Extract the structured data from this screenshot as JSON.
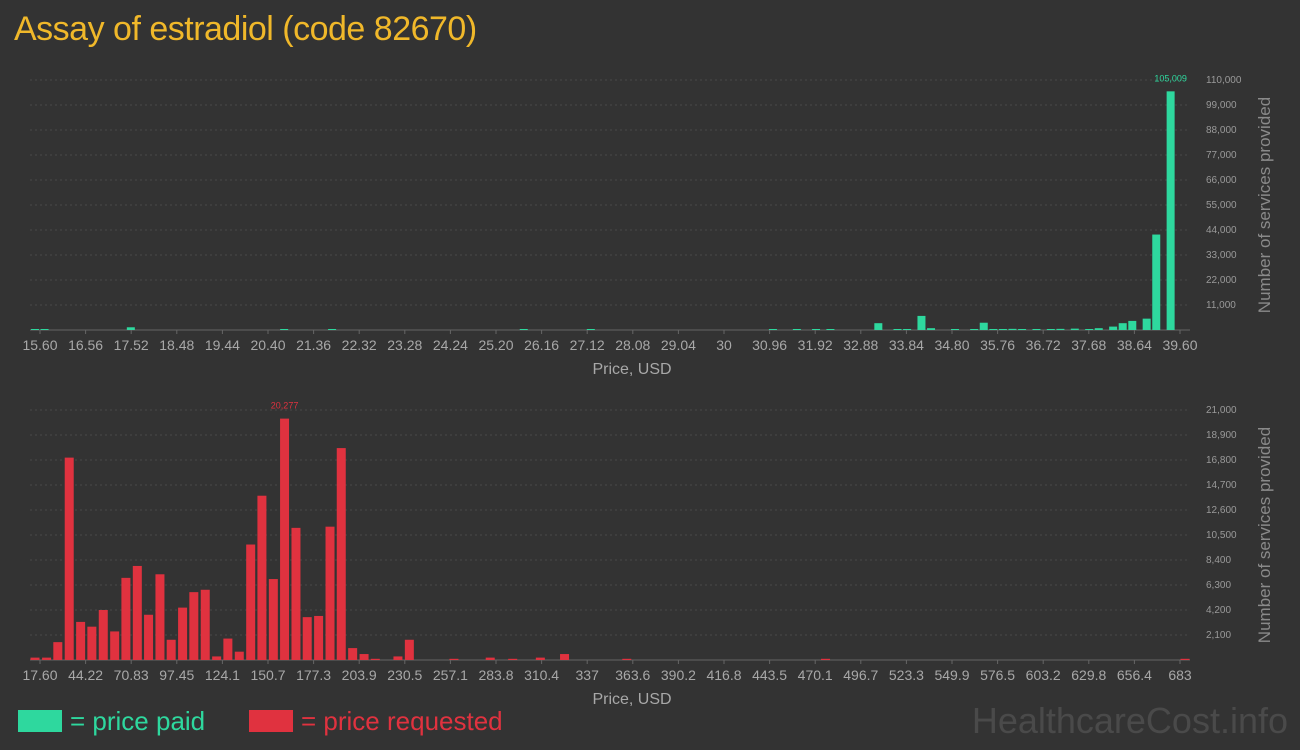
{
  "title": "Assay of estradiol (code 82670)",
  "watermark": "HealthcareCost.info",
  "legend": {
    "paid_label": "= price paid",
    "requested_label": "= price requested"
  },
  "colors": {
    "paid": "#2ed89e",
    "requested": "#e0323f",
    "title": "#f0b82a",
    "background": "#333333"
  },
  "chart_data": [
    {
      "type": "bar",
      "name": "price paid",
      "xlabel": "Price, USD",
      "ylabel": "Number of services provided",
      "x_range": [
        15.6,
        39.6
      ],
      "ylim": [
        0,
        110000
      ],
      "y_ticks": [
        "11,000",
        "22,000",
        "33,000",
        "44,000",
        "55,000",
        "66,000",
        "77,000",
        "88,000",
        "99,000",
        "110,000"
      ],
      "x_ticks": [
        "15.60",
        "16.56",
        "17.52",
        "18.48",
        "19.44",
        "20.40",
        "21.36",
        "22.32",
        "23.28",
        "24.24",
        "25.20",
        "26.16",
        "27.12",
        "28.08",
        "29.04",
        "30",
        "30.96",
        "31.92",
        "32.88",
        "33.84",
        "34.80",
        "35.76",
        "36.72",
        "37.68",
        "38.64",
        "39.60"
      ],
      "peak_label": "105,009",
      "x": [
        15.6,
        15.8,
        17.6,
        20.8,
        21.8,
        25.8,
        27.2,
        31.0,
        31.5,
        31.9,
        32.2,
        33.2,
        33.6,
        33.8,
        34.1,
        34.3,
        34.8,
        35.2,
        35.4,
        35.6,
        35.8,
        36.0,
        36.2,
        36.5,
        36.8,
        37.0,
        37.3,
        37.6,
        37.8,
        38.1,
        38.3,
        38.5,
        38.8,
        39.0,
        39.3
      ],
      "values": [
        300,
        200,
        1200,
        250,
        200,
        300,
        250,
        200,
        150,
        200,
        150,
        3000,
        300,
        200,
        6200,
        800,
        200,
        150,
        3200,
        400,
        300,
        500,
        300,
        400,
        350,
        500,
        600,
        400,
        800,
        1500,
        3000,
        4000,
        5000,
        42000,
        105009
      ]
    },
    {
      "type": "bar",
      "name": "price requested",
      "xlabel": "Price, USD",
      "ylabel": "Number of services provided",
      "x_range": [
        17.6,
        683
      ],
      "ylim": [
        0,
        21000
      ],
      "y_ticks": [
        "2,100",
        "4,200",
        "6,300",
        "8,400",
        "10,500",
        "12,600",
        "14,700",
        "16,800",
        "18,900",
        "21,000"
      ],
      "x_ticks": [
        "17.60",
        "44.22",
        "70.83",
        "97.45",
        "124.1",
        "150.7",
        "177.3",
        "203.9",
        "230.5",
        "257.1",
        "283.8",
        "310.4",
        "337",
        "363.6",
        "390.2",
        "416.8",
        "443.5",
        "470.1",
        "496.7",
        "523.3",
        "549.9",
        "576.5",
        "603.2",
        "629.8",
        "656.4",
        "683"
      ],
      "peak_label": "20,277",
      "x": [
        17.6,
        24.3,
        30.8,
        37.4,
        44,
        50.5,
        57.1,
        63.7,
        70.2,
        76.8,
        83.3,
        89.9,
        96.4,
        103,
        109.5,
        116.1,
        122.7,
        129.2,
        135.8,
        142.4,
        148.9,
        155.5,
        162,
        168.6,
        175.1,
        181.7,
        188.3,
        194.8,
        201.4,
        208,
        214.5,
        227.6,
        234.2,
        260,
        281,
        294,
        310,
        324,
        360,
        475,
        683
      ],
      "values": [
        200,
        200,
        1500,
        17000,
        3200,
        2800,
        4200,
        2400,
        6900,
        7900,
        3800,
        7200,
        1700,
        4400,
        5700,
        5900,
        300,
        1800,
        700,
        9700,
        13800,
        6800,
        20277,
        11100,
        3600,
        3700,
        11200,
        17800,
        1000,
        500,
        100,
        300,
        1700,
        100,
        200,
        100,
        200,
        500,
        100,
        100,
        100
      ]
    }
  ]
}
